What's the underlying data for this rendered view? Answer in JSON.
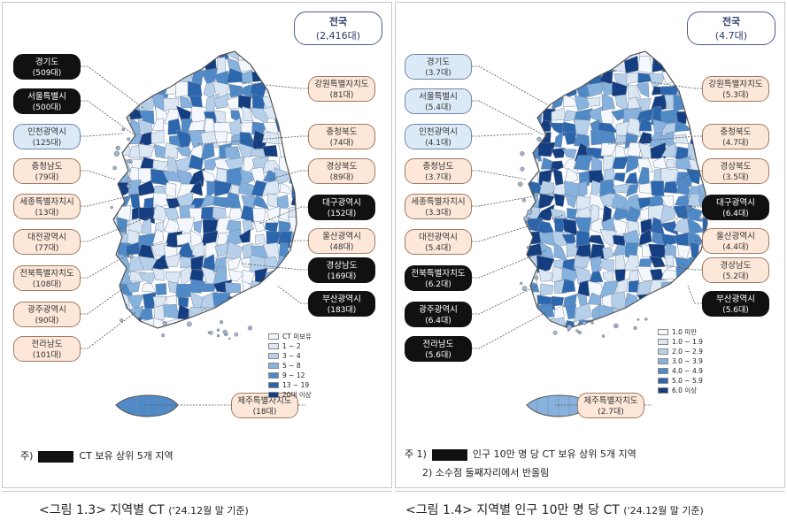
{
  "left": {
    "total": {
      "title": "전국",
      "value": "(2,416대)"
    },
    "labels": [
      {
        "name": "경기도",
        "value": "(509대)",
        "style": "dark"
      },
      {
        "name": "서울특별시",
        "value": "(500대)",
        "style": "dark"
      },
      {
        "name": "인천광역시",
        "value": "(125대)",
        "style": "blue"
      },
      {
        "name": "충청남도",
        "value": "(79대)",
        "style": "peach"
      },
      {
        "name": "세종특별자치시",
        "value": "(13대)",
        "style": "peach"
      },
      {
        "name": "대전광역시",
        "value": "(77대)",
        "style": "peach"
      },
      {
        "name": "전북특별자치도",
        "value": "(108대)",
        "style": "peach"
      },
      {
        "name": "광주광역시",
        "value": "(90대)",
        "style": "peach"
      },
      {
        "name": "전라남도",
        "value": "(101대)",
        "style": "peach"
      },
      {
        "name": "강원특별자치도",
        "value": "(81대)",
        "style": "peach"
      },
      {
        "name": "충청북도",
        "value": "(74대)",
        "style": "peach"
      },
      {
        "name": "경상북도",
        "value": "(89대)",
        "style": "peach"
      },
      {
        "name": "대구광역시",
        "value": "(152대)",
        "style": "dark"
      },
      {
        "name": "울산광역시",
        "value": "(48대)",
        "style": "peach"
      },
      {
        "name": "경상남도",
        "value": "(169대)",
        "style": "dark"
      },
      {
        "name": "부산광역시",
        "value": "(183대)",
        "style": "dark"
      },
      {
        "name": "제주특별자치도",
        "value": "(18대)",
        "style": "peach"
      }
    ],
    "legend": [
      {
        "label": "CT 미보유",
        "color": "#f4f7fb"
      },
      {
        "label": "1 ~ 2",
        "color": "#dbe7f3"
      },
      {
        "label": "3 ~ 4",
        "color": "#b7d0ea"
      },
      {
        "label": "5 ~ 8",
        "color": "#86b2dd"
      },
      {
        "label": "9 ~ 12",
        "color": "#4f8ac7"
      },
      {
        "label": "13 ~ 19",
        "color": "#2c66ad"
      },
      {
        "label": "20대 이상",
        "color": "#143e80"
      }
    ],
    "note": {
      "prefix": "주)",
      "text": "CT 보유 상위 5개 지역"
    },
    "caption": {
      "main": "<그림 1.3> 지역별 CT",
      "sub": "('24.12월 말 기준)"
    }
  },
  "right": {
    "total": {
      "title": "전국",
      "value": "(4.7대)"
    },
    "labels": [
      {
        "name": "경기도",
        "value": "(3.7대)",
        "style": "blue"
      },
      {
        "name": "서울특별시",
        "value": "(5.4대)",
        "style": "blue"
      },
      {
        "name": "인천광역시",
        "value": "(4.1대)",
        "style": "blue"
      },
      {
        "name": "충청남도",
        "value": "(3.7대)",
        "style": "peach"
      },
      {
        "name": "세종특별자치시",
        "value": "(3.3대)",
        "style": "peach"
      },
      {
        "name": "대전광역시",
        "value": "(5.4대)",
        "style": "peach"
      },
      {
        "name": "전북특별자치도",
        "value": "(6.2대)",
        "style": "dark"
      },
      {
        "name": "광주광역시",
        "value": "(6.4대)",
        "style": "dark"
      },
      {
        "name": "전라남도",
        "value": "(5.6대)",
        "style": "dark"
      },
      {
        "name": "강원특별자치도",
        "value": "(5.3대)",
        "style": "peach"
      },
      {
        "name": "충청북도",
        "value": "(4.7대)",
        "style": "peach"
      },
      {
        "name": "경상북도",
        "value": "(3.5대)",
        "style": "peach"
      },
      {
        "name": "대구광역시",
        "value": "(6.4대)",
        "style": "dark"
      },
      {
        "name": "울산광역시",
        "value": "(4.4대)",
        "style": "peach"
      },
      {
        "name": "경상남도",
        "value": "(5.2대)",
        "style": "peach"
      },
      {
        "name": "부산광역시",
        "value": "(5.6대)",
        "style": "dark"
      },
      {
        "name": "제주특별자치도",
        "value": "(2.7대)",
        "style": "peach"
      }
    ],
    "legend": [
      {
        "label": "1.0 미만",
        "color": "#f4f7fb"
      },
      {
        "label": "1.0 ~ 1.9",
        "color": "#dbe7f3"
      },
      {
        "label": "2.0 ~ 2.9",
        "color": "#b7d0ea"
      },
      {
        "label": "3.0 ~ 3.9",
        "color": "#86b2dd"
      },
      {
        "label": "4.0 ~ 4.9",
        "color": "#4f8ac7"
      },
      {
        "label": "5.0 ~ 5.9",
        "color": "#2c66ad"
      },
      {
        "label": "6.0 이상",
        "color": "#143e80"
      }
    ],
    "note": {
      "prefix": "주 1)",
      "text": "인구 10만 명 당 CT 보유 상위 5개 지역",
      "line2": "2) 소수점 둘째자리에서 반올림"
    },
    "caption": {
      "main": "<그림 1.4> 지역별 인구 10만 명 당 CT",
      "sub": "('24.12월 말 기준)"
    }
  }
}
